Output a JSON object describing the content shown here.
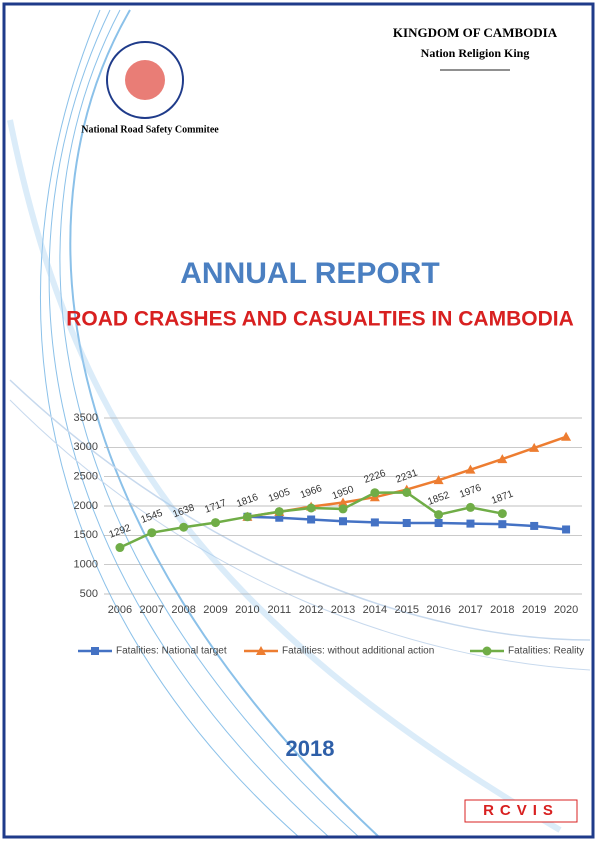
{
  "header": {
    "country": "KINGDOM OF CAMBODIA",
    "motto": "Nation Religion King",
    "committee": "National Road Safety Commitee"
  },
  "title": "ANNUAL REPORT",
  "subtitle": "ROAD CRASHES AND CASUALTIES IN CAMBODIA",
  "chart_data": {
    "type": "line",
    "categories": [
      "2006",
      "2007",
      "2008",
      "2009",
      "2010",
      "2011",
      "2012",
      "2013",
      "2014",
      "2015",
      "2016",
      "2017",
      "2018",
      "2019",
      "2020"
    ],
    "ylim": [
      500,
      3500
    ],
    "yticks": [
      500,
      1000,
      1500,
      2000,
      2500,
      3000,
      3500
    ],
    "grid": true,
    "series": [
      {
        "name": "Fatalities: National target",
        "color": "#4472c4",
        "marker": "square",
        "values": [
          null,
          null,
          null,
          null,
          1816,
          1800,
          1770,
          1740,
          1720,
          1710,
          1710,
          1700,
          1690,
          1660,
          1600
        ]
      },
      {
        "name": "Fatalities: without additional action",
        "color": "#ed7d31",
        "marker": "triangle",
        "values": [
          null,
          null,
          null,
          null,
          1816,
          1900,
          1990,
          2060,
          2150,
          2280,
          2440,
          2620,
          2800,
          2990,
          3180
        ]
      },
      {
        "name": "Fatalities: Reality",
        "color": "#70ad47",
        "marker": "circle",
        "labels": true,
        "values": [
          1292,
          1545,
          1638,
          1717,
          1816,
          1905,
          1966,
          1950,
          2226,
          2231,
          1852,
          1976,
          1871,
          null,
          null
        ]
      }
    ]
  },
  "year": "2018",
  "logo": "RCVIS"
}
